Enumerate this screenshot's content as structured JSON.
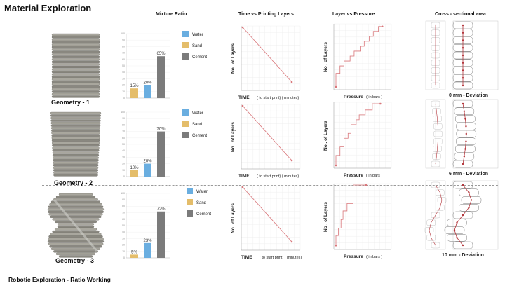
{
  "title": "Material Exploration",
  "columns": {
    "mixture": "Mixture Ratio",
    "time": "Time  vs  Printing Layers",
    "pressure": "Layer  vs  Pressure",
    "cross": "Cross - sectional area"
  },
  "footer": "Robotic Exploration - Ratio Working",
  "colors": {
    "water": "#6aaee0",
    "sand": "#e4bd6a",
    "cement": "#7b7b7b",
    "line": "#d9767a"
  },
  "rows": [
    {
      "geometry": "Geometry - 1",
      "deviation": "0 mm - Deviation",
      "chart_data": {
        "type": "bar",
        "categories": [
          "Water",
          "Sand",
          "Cement"
        ],
        "values": [
          20,
          15,
          65
        ],
        "value_labels": [
          "20%",
          "15%",
          "65%"
        ],
        "ylim": [
          0,
          100
        ],
        "legend": [
          "Water",
          "Sand",
          "Cement"
        ]
      },
      "time_chart": {
        "ylabel": "No . of Layers",
        "xlabel": "TIME",
        "xlabel_sub": "( to start print) ( minutes)"
      },
      "pressure_chart": {
        "ylabel": "No . of Layers",
        "xlabel": "Pressure",
        "xlabel_sub": "( in bars )"
      }
    },
    {
      "geometry": "Geometry - 2",
      "deviation": "6 mm - Deviation",
      "chart_data": {
        "type": "bar",
        "categories": [
          "Water",
          "Sand",
          "Cement"
        ],
        "values": [
          20,
          10,
          70
        ],
        "value_labels": [
          "20%",
          "10%",
          "70%"
        ],
        "ylim": [
          0,
          100
        ],
        "legend": [
          "Water",
          "Sand",
          "Cement"
        ]
      },
      "time_chart": {
        "ylabel": "No . of Layers",
        "xlabel": "TIME",
        "xlabel_sub": "( to start print) ( minutes)"
      },
      "pressure_chart": {
        "ylabel": "No . of Layers",
        "xlabel": "Pressure",
        "xlabel_sub": "( in bars )"
      }
    },
    {
      "geometry": "Geometry - 3",
      "deviation": "10  mm - Deviation",
      "chart_data": {
        "type": "bar",
        "categories": [
          "Water",
          "Sand",
          "Cement"
        ],
        "values": [
          23,
          5,
          72
        ],
        "value_labels": [
          "23%",
          "5%",
          "72%"
        ],
        "ylim": [
          0,
          100
        ],
        "legend": [
          "Water",
          "Sand",
          "Cement"
        ]
      },
      "time_chart": {
        "ylabel": "No . of Layers",
        "xlabel": "TIME",
        "xlabel_sub": "( to start print) ( minutes)"
      },
      "pressure_chart": {
        "ylabel": "No . of Layers",
        "xlabel": "Pressure",
        "xlabel_sub": "( in bars )"
      }
    }
  ]
}
